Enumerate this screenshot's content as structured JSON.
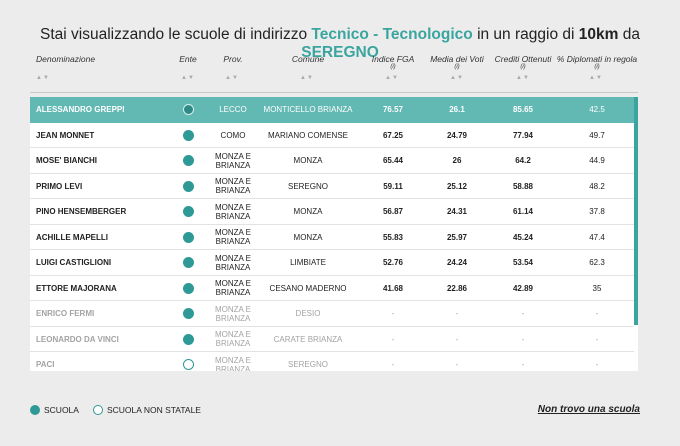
{
  "title": {
    "prefix": "Stai visualizzando le scuole di indirizzo",
    "indirizzo": "Tecnico - Tecnologico",
    "mid": "in un raggio di",
    "raggio": "10km",
    "da": "da",
    "citta": "SEREGNO"
  },
  "columns": {
    "denominazione": "Denominazione",
    "ente": "Ente",
    "prov": "Prov.",
    "comune": "Comune",
    "indice_fga": "Indice FGA",
    "media_voti": "Media dei Voti",
    "crediti": "Crediti Ottenuti",
    "diplomati": "% Diplomati in regola",
    "note": "(i)",
    "sort_glyph": "▲▼"
  },
  "rows": [
    {
      "name": "ALESSANDRO GREPPI",
      "ente": "statale",
      "prov": "LECCO",
      "comune": "MONTICELLO BRIANZA",
      "fga": "76.57",
      "media": "26.1",
      "crediti": "85.65",
      "diplomati": "42.5",
      "selected": true,
      "gray": false
    },
    {
      "name": "JEAN MONNET",
      "ente": "statale",
      "prov": "COMO",
      "comune": "MARIANO COMENSE",
      "fga": "67.25",
      "media": "24.79",
      "crediti": "77.94",
      "diplomati": "49.7",
      "selected": false,
      "gray": false
    },
    {
      "name": "MOSE' BIANCHI",
      "ente": "statale",
      "prov": "MONZA E BRIANZA",
      "comune": "MONZA",
      "fga": "65.44",
      "media": "26",
      "crediti": "64.2",
      "diplomati": "44.9",
      "selected": false,
      "gray": false
    },
    {
      "name": "PRIMO LEVI",
      "ente": "statale",
      "prov": "MONZA E BRIANZA",
      "comune": "SEREGNO",
      "fga": "59.11",
      "media": "25.12",
      "crediti": "58.88",
      "diplomati": "48.2",
      "selected": false,
      "gray": false
    },
    {
      "name": "PINO HENSEMBERGER",
      "ente": "statale",
      "prov": "MONZA E BRIANZA",
      "comune": "MONZA",
      "fga": "56.87",
      "media": "24.31",
      "crediti": "61.14",
      "diplomati": "37.8",
      "selected": false,
      "gray": false
    },
    {
      "name": "ACHILLE MAPELLI",
      "ente": "statale",
      "prov": "MONZA E BRIANZA",
      "comune": "MONZA",
      "fga": "55.83",
      "media": "25.97",
      "crediti": "45.24",
      "diplomati": "47.4",
      "selected": false,
      "gray": false
    },
    {
      "name": "LUIGI CASTIGLIONI",
      "ente": "statale",
      "prov": "MONZA E BRIANZA",
      "comune": "LIMBIATE",
      "fga": "52.76",
      "media": "24.24",
      "crediti": "53.54",
      "diplomati": "62.3",
      "selected": false,
      "gray": false
    },
    {
      "name": "ETTORE MAJORANA",
      "ente": "statale",
      "prov": "MONZA E BRIANZA",
      "comune": "CESANO MADERNO",
      "fga": "41.68",
      "media": "22.86",
      "crediti": "42.89",
      "diplomati": "35",
      "selected": false,
      "gray": false
    },
    {
      "name": "ENRICO FERMI",
      "ente": "statale",
      "prov": "MONZA E BRIANZA",
      "comune": "DESIO",
      "fga": "-",
      "media": "-",
      "crediti": "-",
      "diplomati": "-",
      "selected": false,
      "gray": true
    },
    {
      "name": "LEONARDO DA VINCI",
      "ente": "statale",
      "prov": "MONZA E BRIANZA",
      "comune": "CARATE BRIANZA",
      "fga": "-",
      "media": "-",
      "crediti": "-",
      "diplomati": "-",
      "selected": false,
      "gray": true
    },
    {
      "name": "PACI",
      "ente": "non_statale",
      "prov": "MONZA E BRIANZA",
      "comune": "SEREGNO",
      "fga": "-",
      "media": "-",
      "crediti": "-",
      "diplomati": "-",
      "selected": false,
      "gray": true
    }
  ],
  "legend": {
    "scuola": "SCUOLA",
    "scuola_non_statale": "SCUOLA NON STATALE"
  },
  "link_label": "Non trovo una scuola",
  "colors": {
    "accent": "#3aa59f",
    "selected_row": "#62b8b3",
    "dot": "#2f9a95"
  }
}
